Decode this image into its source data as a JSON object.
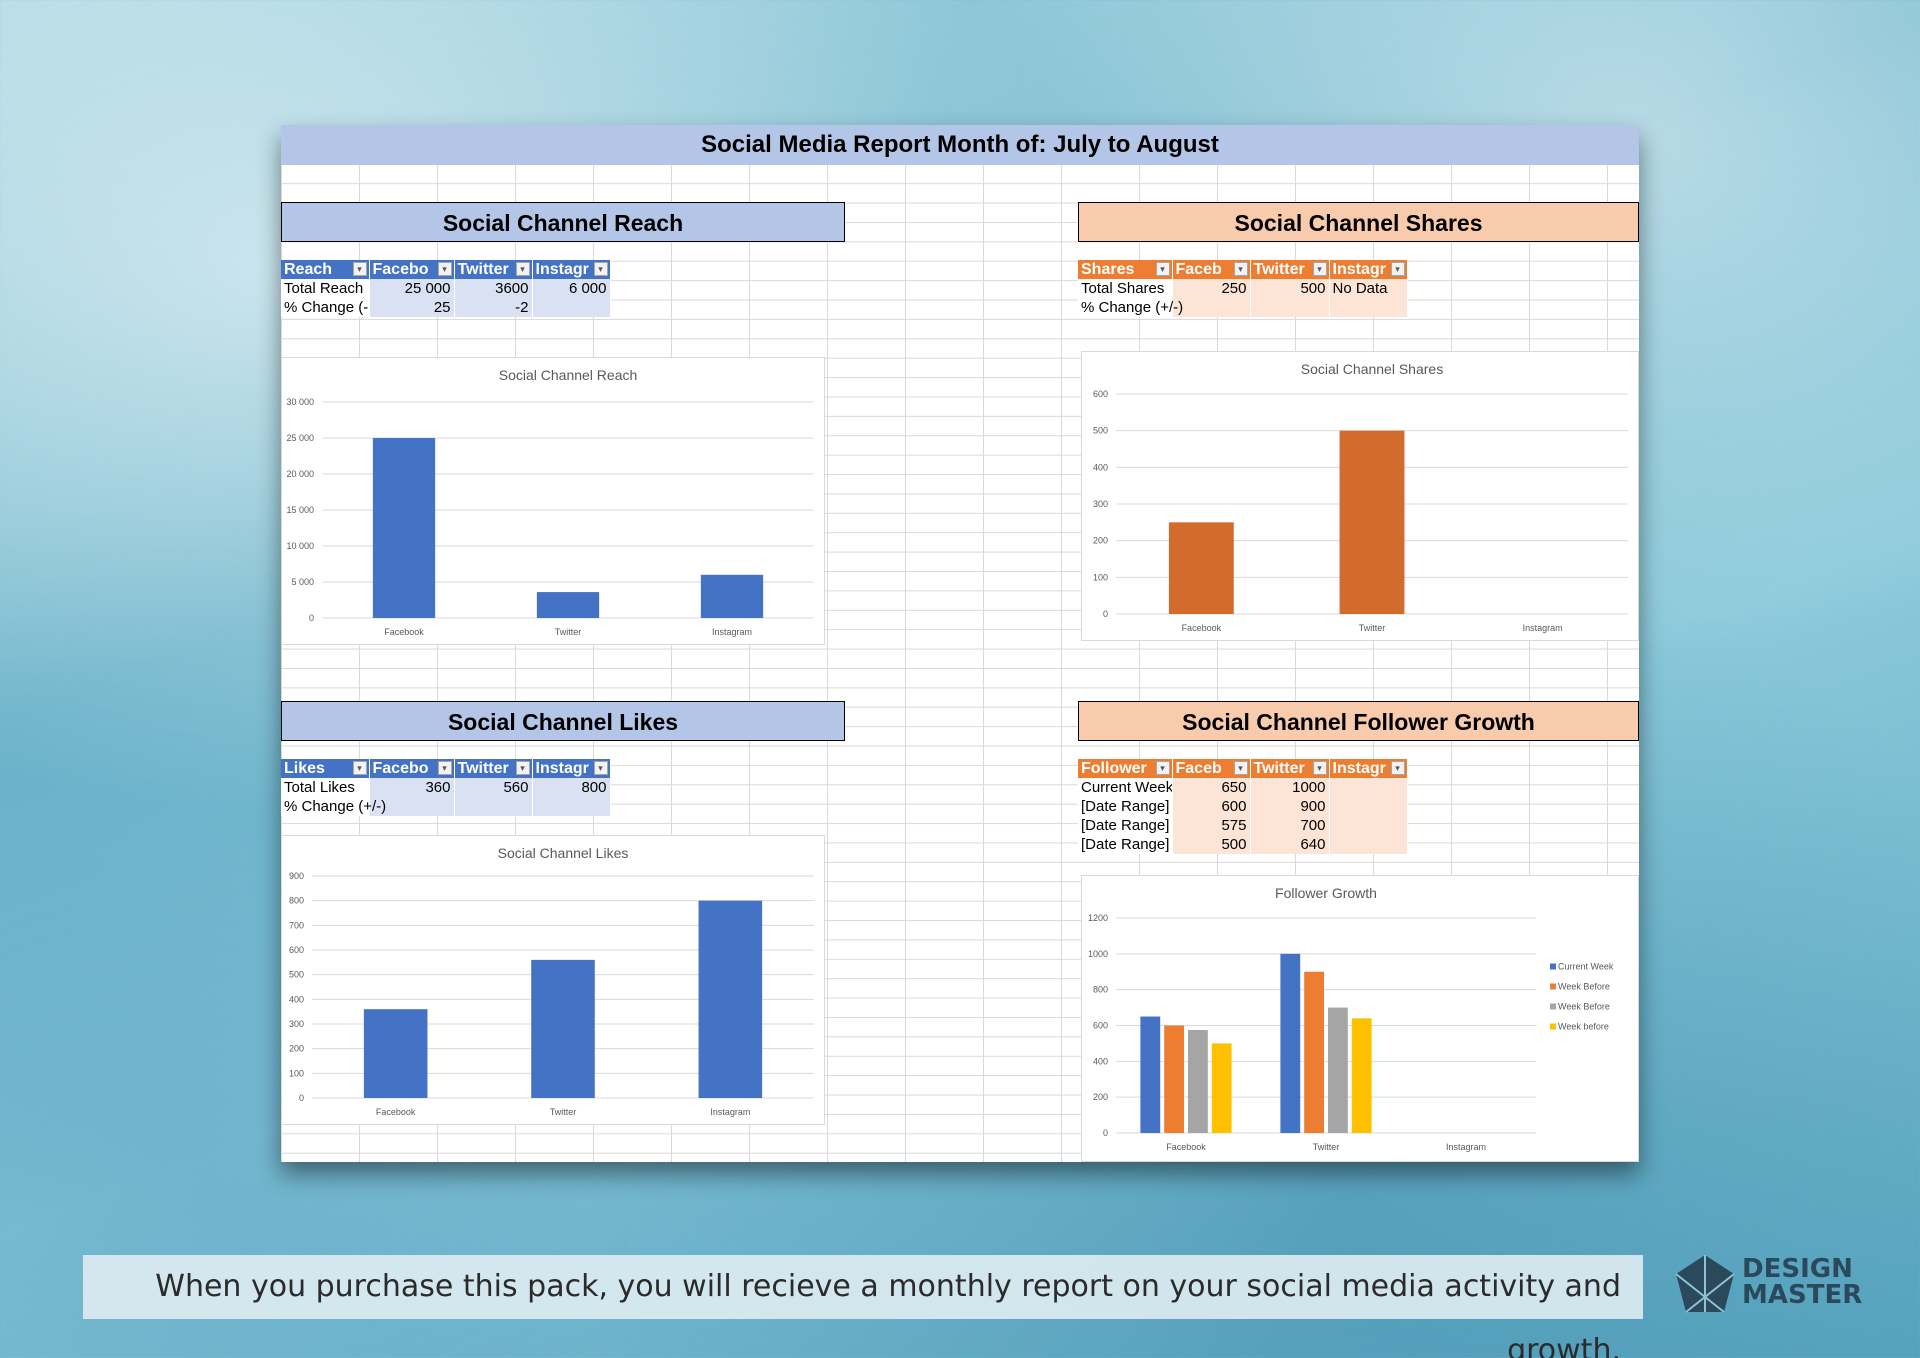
{
  "report_title": "Social Media Report Month of: July to August",
  "reach": {
    "header": "Social Channel Reach",
    "table": {
      "cols": [
        "Reach",
        "Facebo",
        "Twitter",
        "Instagr"
      ],
      "rows": [
        [
          "Total Reach",
          "25 000",
          "3600",
          "6 000"
        ],
        [
          "% Change (-",
          "25",
          "-2",
          ""
        ]
      ]
    }
  },
  "shares": {
    "header": "Social Channel Shares",
    "table": {
      "cols": [
        "Shares",
        "Faceb",
        "Twitter",
        "Instagr"
      ],
      "rows": [
        [
          "Total Shares",
          "250",
          "500",
          "No Data"
        ],
        [
          "% Change (+/-)",
          "",
          "",
          ""
        ]
      ]
    }
  },
  "likes": {
    "header": "Social Channel Likes",
    "table": {
      "cols": [
        "Likes",
        "Facebo",
        "Twitter",
        "Instagr"
      ],
      "rows": [
        [
          "Total Likes",
          "360",
          "560",
          "800"
        ],
        [
          "% Change (+/-)",
          "",
          "",
          ""
        ]
      ]
    }
  },
  "followers": {
    "header": "Social Channel Follower Growth",
    "table": {
      "cols": [
        "Follower",
        "Faceb",
        "Twitter",
        "Instagr"
      ],
      "rows": [
        [
          "Current Week",
          "650",
          "1000",
          ""
        ],
        [
          "[Date Range]",
          "600",
          "900",
          ""
        ],
        [
          "[Date Range]",
          "575",
          "700",
          ""
        ],
        [
          "[Date Range]",
          "500",
          "640",
          ""
        ]
      ]
    }
  },
  "chart_data": [
    {
      "id": "reach",
      "type": "bar",
      "title": "Social Channel Reach",
      "categories": [
        "Facebook",
        "Twitter",
        "Instagram"
      ],
      "values": [
        25000,
        3600,
        6000
      ],
      "ylim": [
        0,
        30000
      ],
      "ystep": 5000,
      "ytick_labels": [
        "0",
        "5 000",
        "10 000",
        "15 000",
        "20 000",
        "25 000",
        "30 000"
      ],
      "color": "#4472c4",
      "grid": true
    },
    {
      "id": "shares",
      "type": "bar",
      "title": "Social Channel Shares",
      "categories": [
        "Facebook",
        "Twitter",
        "Instagram"
      ],
      "values": [
        250,
        500,
        null
      ],
      "ylim": [
        0,
        600
      ],
      "ystep": 100,
      "color": "#d36b2d",
      "grid": true
    },
    {
      "id": "likes",
      "type": "bar",
      "title": "Social Channel Likes",
      "categories": [
        "Facebook",
        "Twitter",
        "Instagram"
      ],
      "values": [
        360,
        560,
        800
      ],
      "ylim": [
        0,
        900
      ],
      "ystep": 100,
      "color": "#4472c4",
      "grid": true
    },
    {
      "id": "followers",
      "type": "bar",
      "title": "Follower Growth",
      "categories": [
        "Facebook",
        "Twitter",
        "Instagram"
      ],
      "series": [
        {
          "name": "Current Week",
          "values": [
            650,
            1000,
            null
          ],
          "color": "#4472c4"
        },
        {
          "name": "Week Before",
          "values": [
            600,
            900,
            null
          ],
          "color": "#ed7d31"
        },
        {
          "name": "Week Before",
          "values": [
            575,
            700,
            null
          ],
          "color": "#a5a5a5"
        },
        {
          "name": "Week before",
          "values": [
            500,
            640,
            null
          ],
          "color": "#ffc000"
        }
      ],
      "ylim": [
        0,
        1200
      ],
      "ystep": 200,
      "grid": true,
      "legend": "right"
    }
  ],
  "caption": "When you purchase this pack, you will recieve a monthly report on your social media activity and growth.",
  "logo": {
    "line1": "DESIGN",
    "line2": "MASTER"
  }
}
